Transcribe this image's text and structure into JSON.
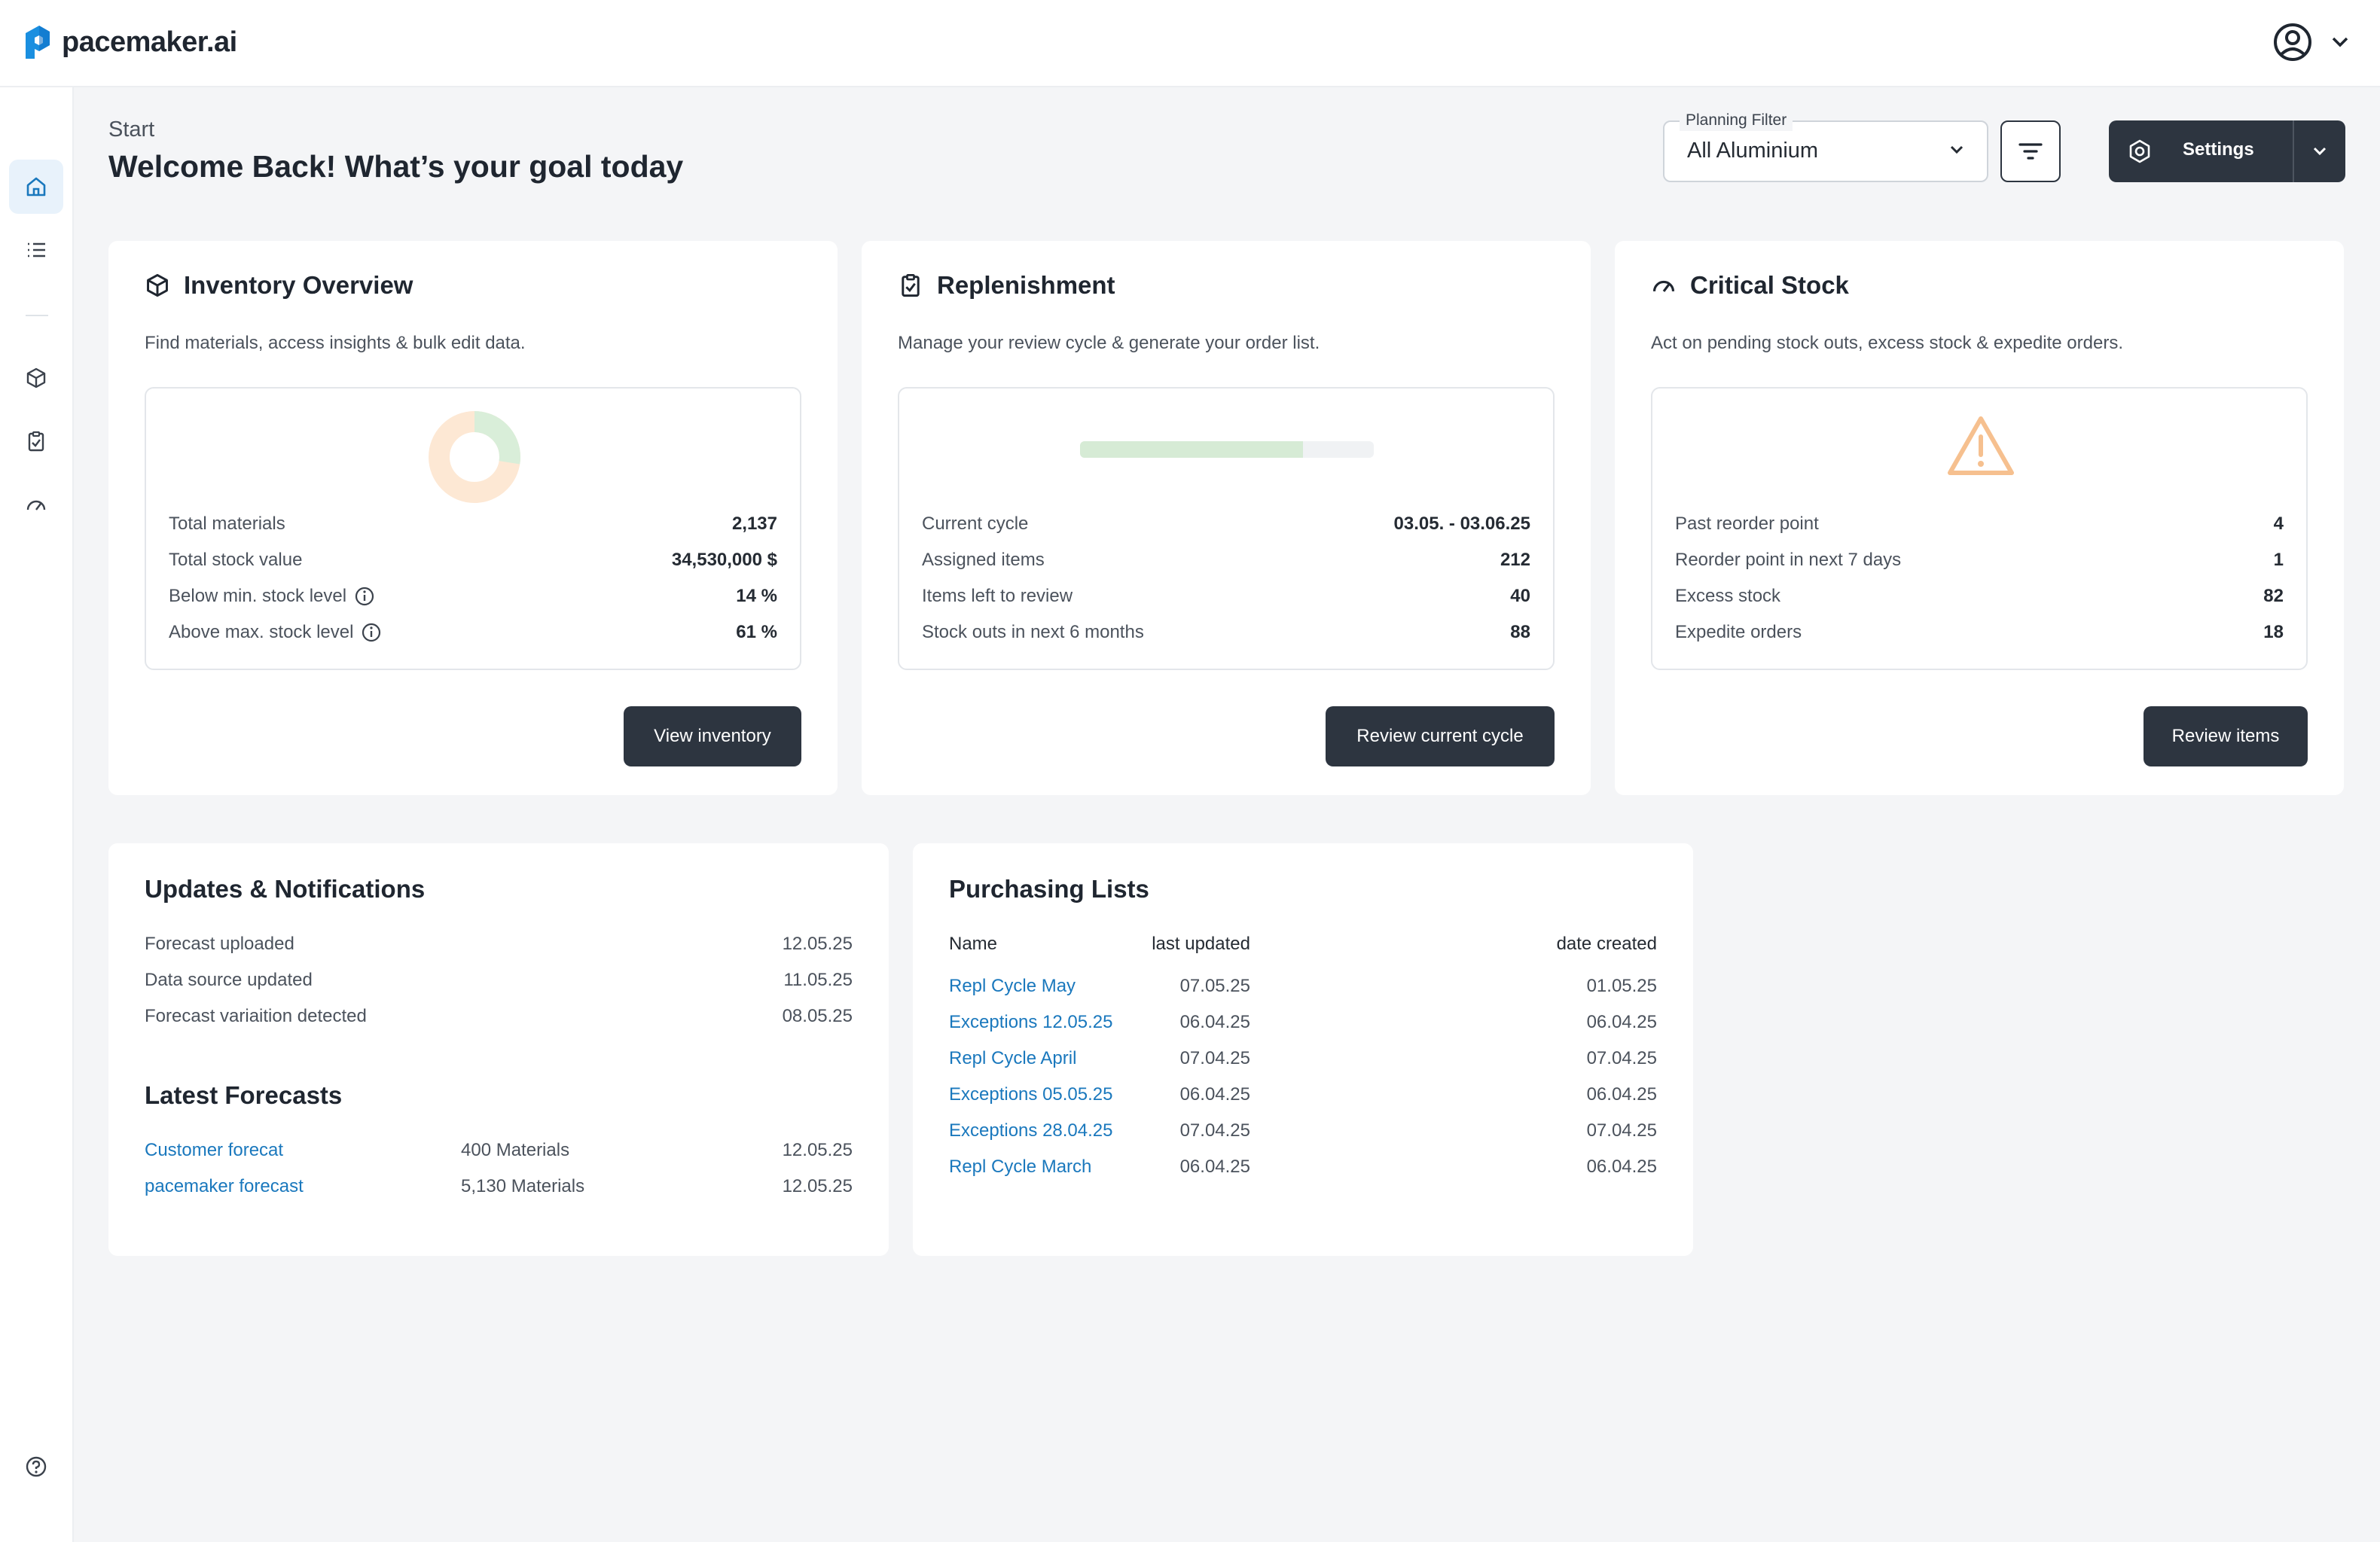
{
  "app": {
    "name": "pacemaker.ai"
  },
  "header": {
    "breadcrumb": "Start",
    "title": "Welcome Back! What’s your goal today"
  },
  "planning_filter": {
    "label": "Planning Filter",
    "value": "All Aluminium"
  },
  "settings": {
    "label": "Settings"
  },
  "cards": {
    "inventory": {
      "title": "Inventory Overview",
      "desc": "Find materials, access insights & bulk edit data.",
      "rows": [
        {
          "label": "Total materials",
          "value": "2,137"
        },
        {
          "label": "Total stock value",
          "value": "34,530,000 $"
        },
        {
          "label": "Below min. stock level",
          "value": "14 %"
        },
        {
          "label": "Above max. stock level",
          "value": "61 %"
        }
      ],
      "button": "View inventory",
      "donut": {
        "below_min": 0.14,
        "above_max": 0.61
      }
    },
    "replenishment": {
      "title": "Replenishment",
      "desc": "Manage your review cycle & generate your order list.",
      "rows": [
        {
          "label": "Current cycle",
          "value": "03.05. - 03.06.25"
        },
        {
          "label": "Assigned items",
          "value": "212"
        },
        {
          "label": "Items left to review",
          "value": "40"
        },
        {
          "label": "Stock outs in next 6 months",
          "value": "88"
        }
      ],
      "button": "Review current cycle",
      "progress": 0.76
    },
    "critical": {
      "title": "Critical Stock",
      "desc": "Act on pending stock outs, excess stock & expedite orders.",
      "rows": [
        {
          "label": "Past reorder point",
          "value": "4"
        },
        {
          "label": "Reorder point in next 7 days",
          "value": "1"
        },
        {
          "label": "Excess stock",
          "value": "82"
        },
        {
          "label": "Expedite orders",
          "value": "18"
        }
      ],
      "button": "Review items"
    }
  },
  "updates": {
    "title": "Updates & Notifications",
    "items": [
      {
        "label": "Forecast uploaded",
        "date": "12.05.25"
      },
      {
        "label": "Data source updated",
        "date": "11.05.25"
      },
      {
        "label": "Forecast variaition detected",
        "date": "08.05.25"
      }
    ]
  },
  "forecasts": {
    "title": "Latest Forecasts",
    "items": [
      {
        "name": "Customer forecat",
        "count": "400 Materials",
        "date": "12.05.25"
      },
      {
        "name": "pacemaker forecast",
        "count": "5,130 Materials",
        "date": "12.05.25"
      }
    ]
  },
  "purchasing": {
    "title": "Purchasing Lists",
    "headers": {
      "name": "Name",
      "updated": "last updated",
      "created": "date created"
    },
    "rows": [
      {
        "name": "Repl Cycle May",
        "updated": "07.05.25",
        "created": "01.05.25"
      },
      {
        "name": "Exceptions 12.05.25",
        "updated": "06.04.25",
        "created": "06.04.25"
      },
      {
        "name": "Repl Cycle April",
        "updated": "07.04.25",
        "created": "07.04.25"
      },
      {
        "name": "Exceptions 05.05.25",
        "updated": "06.04.25",
        "created": "06.04.25"
      },
      {
        "name": "Exceptions 28.04.25",
        "updated": "07.04.25",
        "created": "07.04.25"
      },
      {
        "name": "Repl Cycle March",
        "updated": "06.04.25",
        "created": "06.04.25"
      }
    ]
  },
  "colors": {
    "accent": "#1a78bd",
    "dark": "#2d3540",
    "donut_orange": "#fde8d4",
    "donut_green": "#d9eed9",
    "progress_green": "#d6ebd5",
    "warning": "#f6c08f"
  },
  "icons": [
    "home-icon",
    "list-icon",
    "box-icon",
    "clipboard-check-icon",
    "gauge-icon",
    "help-icon",
    "user-icon",
    "filter-icon",
    "settings-icon",
    "chevron-down-icon",
    "warning-icon",
    "info-icon"
  ]
}
